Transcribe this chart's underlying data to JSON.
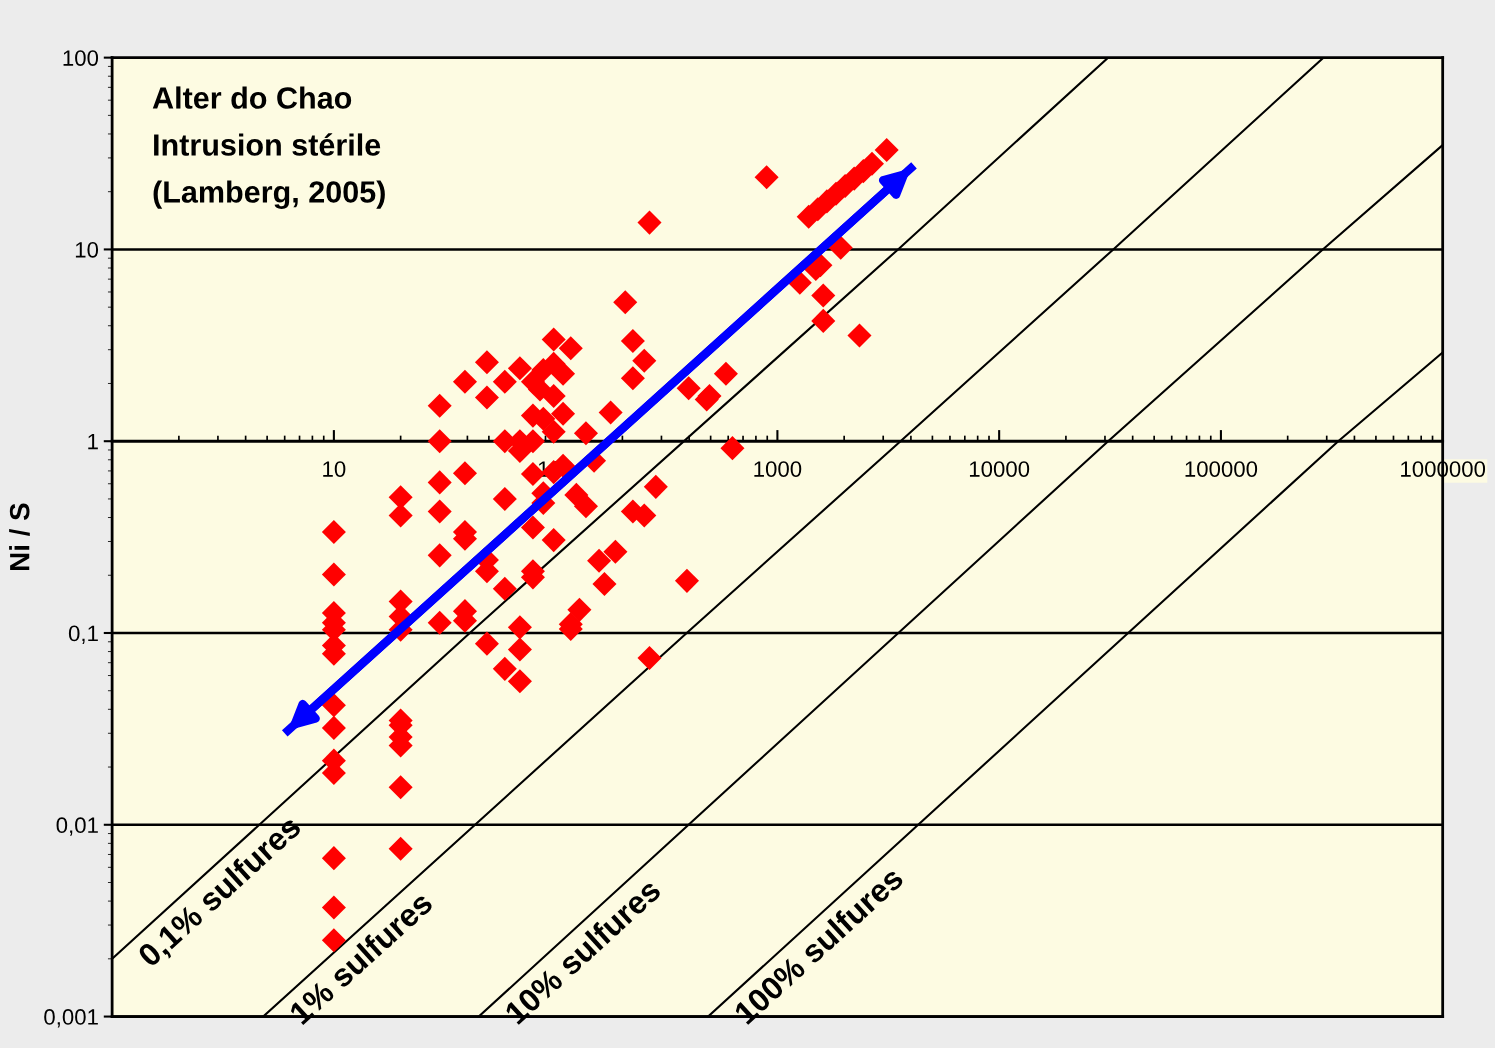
{
  "chart_data": {
    "type": "scatter",
    "ylabel": "Ni / S",
    "annotations": [
      "Alter do Chao",
      "Intrusion stérile",
      "(Lamberg, 2005)"
    ],
    "xlim": [
      1,
      1000000
    ],
    "ylim": [
      0.001,
      100
    ],
    "xticks": [
      10,
      100,
      1000,
      10000,
      100000,
      1000000
    ],
    "yticks": [
      {
        "value": 0.001,
        "label": "0,001"
      },
      {
        "value": 0.01,
        "label": "0,01"
      },
      {
        "value": 0.1,
        "label": "0,1"
      },
      1,
      10,
      100
    ],
    "log": "xy",
    "grid": "y",
    "series": [
      {
        "name": "0,1% sulfures",
        "type": "line",
        "color": "#000000",
        "marker": "none",
        "line_style": "solid",
        "x": [
          1,
          41,
          3500,
          31000
        ],
        "values": [
          0.002,
          0.1,
          10,
          100
        ]
      },
      {
        "name": "1% sulfures",
        "type": "line",
        "color": "#000000",
        "marker": "none",
        "line_style": "solid",
        "x": [
          4.8,
          390,
          3590,
          32700,
          290000
        ],
        "values": [
          0.001,
          0.1,
          1,
          10,
          100
        ]
      },
      {
        "name": "10% sulfures",
        "type": "line",
        "color": "#000000",
        "marker": "none",
        "line_style": "solid",
        "x": [
          45,
          31000,
          288000,
          1000000
        ],
        "values": [
          0.001,
          1,
          10,
          35
        ]
      },
      {
        "name": "100% sulfures",
        "type": "line",
        "color": "#000000",
        "marker": "none",
        "line_style": "solid",
        "x": [
          487,
          338000,
          1000000
        ],
        "values": [
          0.001,
          1,
          2.9
        ]
      },
      {
        "color": "#ff0000",
        "marker": "diamond",
        "x": [
          10,
          10,
          10,
          10,
          10,
          10,
          10,
          10,
          10,
          10,
          10,
          10,
          10,
          10,
          20,
          20,
          20,
          20,
          20,
          20,
          20,
          20,
          20,
          20,
          20,
          30,
          30,
          30,
          30,
          30,
          30,
          39,
          39,
          39,
          39,
          39,
          39,
          49,
          49,
          49,
          49,
          49,
          59,
          59,
          59,
          59,
          59,
          69,
          69,
          69,
          69,
          69,
          69,
          79,
          79,
          79,
          79,
          79,
          79,
          79,
          88,
          98,
          108,
          85,
          98,
          88,
          108,
          98,
          98,
          117,
          206,
          223,
          251,
          223,
          177,
          137,
          149,
          108,
          98,
          88,
          88,
          124,
          137,
          98,
          283,
          223,
          251,
          186,
          157,
          166,
          128,
          117,
          117,
          265,
          391,
          398,
          494,
          480,
          586,
          627,
          265,
          894,
          1384,
          1521,
          1672,
          1838,
          2020,
          2220,
          2441,
          2670,
          3110,
          1930,
          1563,
          1490,
          1262,
          1610,
          1610,
          2345
        ],
        "values": [
          0.336,
          0.202,
          0.127,
          0.113,
          0.104,
          0.086,
          0.078,
          0.042,
          0.032,
          0.0216,
          0.0186,
          0.0067,
          0.0037,
          0.0025,
          0.51,
          0.41,
          0.146,
          0.122,
          0.104,
          0.035,
          0.033,
          0.0287,
          0.0259,
          0.0157,
          0.0075,
          1.53,
          1.0,
          0.61,
          0.43,
          0.254,
          0.113,
          2.04,
          0.68,
          0.336,
          0.31,
          0.13,
          0.116,
          2.58,
          1.69,
          0.24,
          0.21,
          0.088,
          2.04,
          1.0,
          0.5,
          0.17,
          0.065,
          2.4,
          1.0,
          0.89,
          0.107,
          0.082,
          0.056,
          2.04,
          1.36,
          1.0,
          0.675,
          0.355,
          0.21,
          0.195,
          2.35,
          2.53,
          2.25,
          1.86,
          1.72,
          1.31,
          1.39,
          1.12,
          3.39,
          3.05,
          5.3,
          3.33,
          2.63,
          2.13,
          1.41,
          1.1,
          0.79,
          0.745,
          0.69,
          0.535,
          0.476,
          0.525,
          0.458,
          0.305,
          0.578,
          0.43,
          0.41,
          0.265,
          0.238,
          0.18,
          0.132,
          0.111,
          0.105,
          0.074,
          0.187,
          1.89,
          1.72,
          1.65,
          2.25,
          0.92,
          13.8,
          23.8,
          14.8,
          16.2,
          17.8,
          19.5,
          21.4,
          23.4,
          25.6,
          28.0,
          33,
          10.2,
          8.26,
          7.9,
          6.7,
          5.75,
          4.24,
          3.56
        ]
      },
      {
        "type": "line",
        "color": "#0000ff",
        "marker": "none",
        "line_style": "solid",
        "x": [
          6.2,
          4000
        ],
        "values": [
          0.031,
          26.5
        ]
      }
    ]
  }
}
